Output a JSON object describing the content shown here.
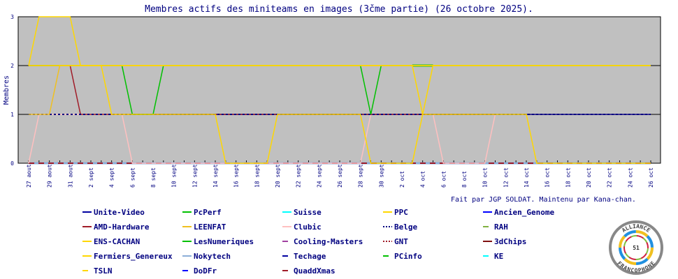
{
  "chart_data": {
    "type": "line",
    "title": "Membres actifs des miniteams en images (3čme partie) (26 octobre 2025).",
    "ylabel": "Membres",
    "ylim": [
      0,
      3
    ],
    "yticks": [
      "0",
      "1",
      "2",
      "3"
    ],
    "x_start": "27 aout",
    "x_end": "26 oct",
    "xticks": [
      "27 aout",
      "29 aout",
      "31 aout",
      "2 sept",
      "4 sept",
      "6 sept",
      "8 sept",
      "10 sept",
      "12 sept",
      "14 sept",
      "16 sept",
      "18 sept",
      "20 sept",
      "22 sept",
      "24 sept",
      "26 sept",
      "28 sept",
      "30 sept",
      "2 oct",
      "4 oct",
      "6 oct",
      "8 oct",
      "10 oct",
      "12 oct",
      "14 oct",
      "16 oct",
      "18 oct",
      "20 oct",
      "22 oct",
      "24 oct",
      "26 oct"
    ],
    "grid": false,
    "background": "#c0c0c0",
    "series": [
      {
        "name": "Nokytech",
        "color": "#8caed8",
        "style": "solid",
        "values": [
          0,
          0,
          0,
          0,
          0,
          0,
          0,
          0,
          0,
          0,
          0,
          0,
          0,
          0,
          0,
          0,
          0,
          0,
          0,
          0,
          0,
          0,
          0,
          0,
          0,
          0,
          0,
          0,
          0,
          0,
          0,
          0,
          0,
          0,
          0,
          0,
          0,
          0,
          0,
          0,
          0,
          0,
          0,
          0,
          0,
          0,
          0,
          0,
          0,
          0,
          0,
          0,
          0,
          0,
          0,
          0,
          0,
          0,
          0,
          0,
          0
        ]
      },
      {
        "name": "GNT",
        "color": "#a01c28",
        "style": "dotted",
        "values": [
          0,
          0,
          0,
          0,
          0,
          0,
          0,
          0,
          0,
          0,
          0,
          0,
          0,
          0,
          0,
          0,
          0,
          0,
          0,
          0,
          0,
          0,
          0,
          0,
          0,
          0,
          0,
          0,
          0,
          0,
          0,
          0,
          0,
          0,
          0,
          0,
          0,
          0,
          0,
          0,
          0,
          0,
          0,
          0,
          0,
          0,
          0,
          0,
          0,
          0,
          0,
          0,
          0,
          0,
          0,
          0,
          0,
          0,
          0,
          0,
          0
        ]
      },
      {
        "name": "Clubic",
        "color": "#ffc0c0",
        "style": "solid",
        "values": [
          0,
          1,
          1,
          1,
          1,
          1,
          1,
          1,
          1,
          1,
          0,
          0,
          0,
          0,
          0,
          0,
          0,
          0,
          0,
          0,
          0,
          0,
          0,
          0,
          0,
          0,
          0,
          0,
          0,
          0,
          0,
          0,
          0,
          1,
          1,
          1,
          1,
          1,
          1,
          1,
          0,
          0,
          0,
          0,
          0,
          1,
          1,
          1,
          1,
          1,
          1,
          1,
          1,
          1,
          1,
          1,
          1,
          1,
          1,
          1,
          1
        ]
      },
      {
        "name": "Unite-Video",
        "color": "#000080",
        "style": "solid",
        "values": [
          null,
          null,
          null,
          null,
          null,
          null,
          null,
          null,
          null,
          null,
          1,
          1,
          1,
          1,
          1,
          1,
          1,
          1,
          1,
          1,
          1,
          1,
          1,
          1,
          1,
          1,
          1,
          1,
          1,
          1,
          1,
          1,
          1,
          1,
          1,
          1,
          1,
          1,
          1,
          1,
          1,
          1,
          1,
          1,
          1,
          1,
          1,
          1,
          1,
          1,
          1,
          1,
          1,
          1,
          1,
          1,
          1,
          1,
          1,
          1,
          1
        ]
      },
      {
        "name": "AMD-Hardware",
        "color": "#a01c28",
        "style": "solid",
        "values": [
          2,
          2,
          2,
          2,
          2,
          1,
          1,
          1,
          1,
          1,
          1,
          1,
          1,
          1,
          1,
          1,
          1,
          1,
          1,
          1,
          1,
          1,
          1,
          1,
          1,
          1,
          1,
          1,
          1,
          1,
          1,
          1,
          1,
          1,
          1,
          1,
          1,
          1,
          1,
          1,
          1,
          1,
          1,
          1,
          1,
          1,
          null,
          null,
          null,
          null,
          null,
          null,
          null,
          null,
          null,
          null,
          null,
          null,
          null,
          null,
          null
        ]
      },
      {
        "name": "Belge",
        "color": "#000080",
        "style": "dotted",
        "values": [
          1,
          1,
          1,
          1,
          1,
          1,
          1,
          1,
          1,
          1,
          1,
          1,
          1,
          1,
          1,
          1,
          1,
          1,
          1,
          1,
          1,
          1,
          1,
          1,
          1,
          1,
          1,
          1,
          1,
          1,
          1,
          1,
          1,
          1,
          1,
          1,
          1,
          1,
          1,
          1,
          1,
          1,
          1,
          1,
          1,
          1,
          1,
          1,
          1,
          1,
          1,
          1,
          1,
          1,
          1,
          1,
          1,
          1,
          1,
          1,
          1
        ]
      },
      {
        "name": "PcPerf",
        "color": "#00c000",
        "style": "solid",
        "values": [
          2,
          2,
          2,
          2,
          2,
          2,
          2,
          2,
          2,
          2,
          1,
          1,
          1,
          2,
          2,
          2,
          2,
          2,
          2,
          2,
          2,
          2,
          2,
          2,
          2,
          2,
          2,
          2,
          2,
          2,
          2,
          2,
          2,
          1,
          2,
          2,
          2,
          2,
          2,
          2,
          2,
          2,
          2,
          2,
          2,
          2,
          2,
          2,
          2,
          2,
          2,
          2,
          2,
          2,
          2,
          2,
          2,
          2,
          2,
          2,
          2
        ]
      },
      {
        "name": "PCinfo",
        "color": "#00c000",
        "style": "solid",
        "values": [
          null,
          null,
          null,
          null,
          null,
          null,
          null,
          null,
          null,
          null,
          null,
          null,
          null,
          null,
          null,
          null,
          null,
          null,
          null,
          null,
          null,
          null,
          null,
          null,
          null,
          null,
          null,
          null,
          null,
          null,
          null,
          null,
          null,
          null,
          null,
          null,
          null,
          2,
          2,
          2,
          null,
          null,
          null,
          null,
          null,
          null,
          null,
          null,
          null,
          null,
          null,
          null,
          null,
          null,
          null,
          null,
          null,
          null,
          null,
          null,
          null
        ]
      },
      {
        "name": "LEENFAT",
        "color": "#f0c020",
        "style": "solid",
        "values": [
          1,
          1,
          1,
          2,
          2,
          2,
          2,
          2,
          2,
          2,
          2,
          2,
          2,
          2,
          2,
          2,
          2,
          2,
          2,
          2,
          2,
          2,
          2,
          2,
          2,
          2,
          2,
          2,
          2,
          2,
          2,
          2,
          2,
          2,
          2,
          2,
          2,
          2,
          2,
          2,
          2,
          2,
          2,
          2,
          2,
          2,
          2,
          2,
          2,
          2,
          2,
          2,
          2,
          2,
          2,
          2,
          2,
          2,
          2,
          2,
          2
        ]
      },
      {
        "name": "ENS-CACHAN",
        "color": "#ffd700",
        "style": "solid",
        "values": [
          2,
          2,
          2,
          2,
          2,
          2,
          2,
          2,
          1,
          1,
          1,
          1,
          1,
          1,
          1,
          1,
          1,
          1,
          1,
          0,
          0,
          0,
          0,
          0,
          1,
          1,
          1,
          1,
          1,
          1,
          1,
          1,
          1,
          0,
          0,
          0,
          0,
          0,
          1,
          2,
          2,
          2,
          2,
          2,
          2,
          2,
          2,
          2,
          2,
          2,
          2,
          2,
          2,
          2,
          2,
          2,
          2,
          2,
          2,
          2,
          2
        ]
      },
      {
        "name": "TSLN",
        "color": "#ffd700",
        "style": "solid",
        "values": [
          2,
          2,
          2,
          2,
          2,
          2,
          2,
          2,
          2,
          2,
          2,
          2,
          2,
          2,
          2,
          2,
          2,
          2,
          2,
          2,
          2,
          2,
          2,
          2,
          2,
          2,
          2,
          2,
          2,
          2,
          2,
          2,
          2,
          2,
          2,
          2,
          2,
          2,
          1,
          1,
          1,
          1,
          1,
          1,
          1,
          1,
          1,
          1,
          1,
          0,
          0,
          0,
          0,
          0,
          0,
          0,
          0,
          0,
          0,
          0,
          0
        ]
      },
      {
        "name": "PPC",
        "color": "#ffd700",
        "style": "solid",
        "values": [
          2,
          3,
          3,
          3,
          3,
          2,
          2,
          2,
          2,
          2,
          2,
          2,
          2,
          2,
          2,
          2,
          2,
          2,
          2,
          2,
          2,
          2,
          2,
          2,
          2,
          2,
          2,
          2,
          2,
          2,
          2,
          2,
          2,
          2,
          2,
          2,
          2,
          2,
          2,
          2,
          2,
          2,
          2,
          2,
          2,
          2,
          2,
          2,
          2,
          2,
          2,
          2,
          2,
          2,
          2,
          2,
          2,
          2,
          2,
          2,
          2
        ]
      }
    ],
    "legend": [
      {
        "name": "Unite-Video",
        "color": "#0000a0",
        "style": "solid"
      },
      {
        "name": "PcPerf",
        "color": "#00c000",
        "style": "solid"
      },
      {
        "name": "Suisse",
        "color": "#00ffff",
        "style": "solid"
      },
      {
        "name": "PPC",
        "color": "#ffd700",
        "style": "solid"
      },
      {
        "name": "Ancien_Genome",
        "color": "#0000ff",
        "style": "solid"
      },
      {
        "name": "AMD-Hardware",
        "color": "#a01c28",
        "style": "solid"
      },
      {
        "name": "LEENFAT",
        "color": "#f0c020",
        "style": "solid"
      },
      {
        "name": "Clubic",
        "color": "#ffc0c0",
        "style": "solid"
      },
      {
        "name": "Belge",
        "color": "#000080",
        "style": "dotted"
      },
      {
        "name": "RAH",
        "color": "#80b040",
        "style": "short"
      },
      {
        "name": "ENS-CACHAN",
        "color": "#ffd700",
        "style": "solid"
      },
      {
        "name": "LesNumeriques",
        "color": "#00c000",
        "style": "solid"
      },
      {
        "name": "Cooling-Masters",
        "color": "#a040a0",
        "style": "short"
      },
      {
        "name": "GNT",
        "color": "#a01c28",
        "style": "dotted"
      },
      {
        "name": "3dChips",
        "color": "#801010",
        "style": "solid"
      },
      {
        "name": "Fermiers_Genereux",
        "color": "#ffd700",
        "style": "solid"
      },
      {
        "name": "Nokytech",
        "color": "#8caed8",
        "style": "solid"
      },
      {
        "name": "Techage",
        "color": "#0000a0",
        "style": "short"
      },
      {
        "name": "PCinfo",
        "color": "#00c000",
        "style": "short"
      },
      {
        "name": "KE",
        "color": "#00ffff",
        "style": "short"
      },
      {
        "name": "TSLN",
        "color": "#ffd700",
        "style": "short"
      },
      {
        "name": "DoDFr",
        "color": "#0000ff",
        "style": "short"
      },
      {
        "name": "QuaddXmas",
        "color": "#a01c28",
        "style": "short"
      }
    ]
  },
  "credit": "Fait par JGP SOLDAT. Maintenu par Kana-chan.",
  "logo": {
    "top": "ALLIANCE",
    "bottom": "FRANCOPHONE",
    "center": "51"
  }
}
